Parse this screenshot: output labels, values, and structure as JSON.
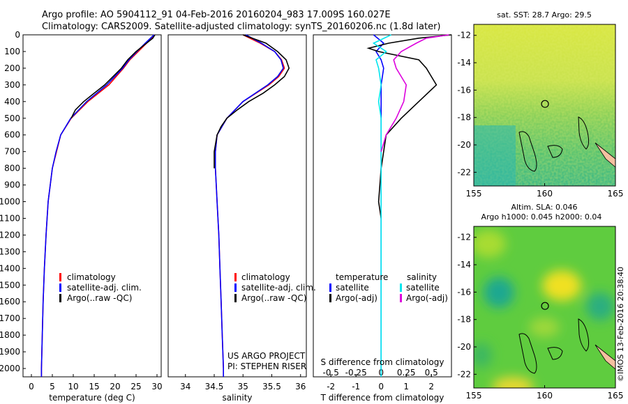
{
  "header": {
    "line1": "Argo profile: AO 5904112_91 04-Feb-2016 20160204_983 17.009S 160.027E",
    "line2": "Climatology: CARS2009. Satellite-adjusted climatology: synTS_20160206.nc (1.8d later)"
  },
  "colors": {
    "climatology": "#ff0000",
    "satellite": "#0000ff",
    "argo": "#000000",
    "sal_satellite": "#00e5ee",
    "sal_argo": "#dd00dd"
  },
  "credit": "©IMOS 13-Feb-2016 20:38:40",
  "chart_data": [
    {
      "type": "line",
      "xlabel": "temperature (deg C)",
      "ylabel": "",
      "xlim": [
        -2,
        31
      ],
      "ylim": [
        2050,
        0
      ],
      "xticks": [
        0,
        5,
        10,
        15,
        20,
        25,
        30
      ],
      "yticks": [
        0,
        100,
        200,
        300,
        400,
        500,
        600,
        700,
        800,
        900,
        1000,
        1100,
        1200,
        1300,
        1400,
        1500,
        1600,
        1700,
        1800,
        1900,
        2000
      ],
      "legend": [
        "climatology",
        "satellite-adj. clim.",
        "Argo(..raw -QC)"
      ],
      "series": [
        {
          "name": "climatology",
          "color": "#ff0000",
          "depth": [
            0,
            50,
            100,
            150,
            200,
            300,
            400,
            500,
            600,
            700,
            800,
            900,
            1000,
            1200,
            1400,
            1600,
            1800,
            2000,
            2050
          ],
          "values": [
            29.5,
            27.5,
            25.5,
            23.5,
            22.0,
            18.5,
            13.5,
            9.5,
            7.0,
            6.0,
            5.0,
            4.5,
            4.0,
            3.5,
            3.1,
            2.8,
            2.6,
            2.4,
            2.4
          ]
        },
        {
          "name": "satellite-adj. clim.",
          "color": "#0000ff",
          "depth": [
            0,
            50,
            100,
            150,
            200,
            300,
            400,
            500,
            600,
            700,
            800,
            900,
            1000,
            1200,
            1400,
            1600,
            1800,
            2000,
            2050
          ],
          "values": [
            29.3,
            27.2,
            25.2,
            23.3,
            21.8,
            18.0,
            13.2,
            9.4,
            7.0,
            5.9,
            5.0,
            4.5,
            4.0,
            3.5,
            3.1,
            2.8,
            2.6,
            2.4,
            2.4
          ]
        },
        {
          "name": "Argo(..raw -QC)",
          "color": "#000000",
          "depth": [
            0,
            20,
            50,
            100,
            150,
            200,
            250,
            300,
            350,
            400,
            450,
            500
          ],
          "values": [
            29.5,
            29.0,
            27.5,
            25.0,
            23.0,
            21.5,
            19.5,
            17.5,
            15.0,
            12.5,
            10.5,
            9.5
          ]
        }
      ]
    },
    {
      "type": "line",
      "xlabel": "salinity",
      "ylabel": "",
      "xlim": [
        33.7,
        36.1
      ],
      "ylim": [
        2050,
        0
      ],
      "xticks": [
        34,
        34.5,
        35,
        35.5,
        36
      ],
      "legend": [
        "climatology",
        "satellite-adj. clim.",
        "Argo(..raw -QC)"
      ],
      "annotations": [
        "US ARGO PROJECT",
        "PI: STEPHEN RISER"
      ],
      "series": [
        {
          "name": "climatology",
          "color": "#ff0000",
          "depth": [
            0,
            50,
            100,
            150,
            200,
            250,
            300,
            400,
            500,
            600,
            700,
            800,
            1000,
            1200,
            1400,
            1600,
            1800,
            2000,
            2050
          ],
          "values": [
            35.0,
            35.3,
            35.55,
            35.67,
            35.72,
            35.62,
            35.45,
            35.0,
            34.72,
            34.55,
            34.52,
            34.52,
            34.55,
            34.58,
            34.6,
            34.62,
            34.64,
            34.66,
            34.66
          ]
        },
        {
          "name": "satellite-adj. clim.",
          "color": "#0000ff",
          "depth": [
            0,
            50,
            100,
            150,
            200,
            250,
            300,
            400,
            500,
            600,
            700,
            800,
            1000,
            1200,
            1400,
            1600,
            1800,
            2000,
            2050
          ],
          "values": [
            35.05,
            35.32,
            35.55,
            35.66,
            35.7,
            35.6,
            35.43,
            35.0,
            34.72,
            34.55,
            34.52,
            34.52,
            34.55,
            34.58,
            34.6,
            34.62,
            34.64,
            34.66,
            34.66
          ]
        },
        {
          "name": "Argo(..raw -QC)",
          "color": "#000000",
          "depth": [
            0,
            50,
            100,
            150,
            200,
            250,
            300,
            350,
            400,
            450,
            500,
            550,
            600,
            700,
            800
          ],
          "values": [
            35.0,
            35.4,
            35.6,
            35.75,
            35.8,
            35.72,
            35.55,
            35.35,
            35.1,
            34.9,
            34.72,
            34.62,
            34.55,
            34.5,
            34.5
          ]
        }
      ]
    },
    {
      "type": "line",
      "xlabel": "T difference from climatology",
      "x2label": "S difference from climatology",
      "xlim": [
        -2.7,
        2.8
      ],
      "ylim": [
        2050,
        0
      ],
      "xticks": [
        -2,
        -1,
        0,
        1,
        2
      ],
      "x2ticks": [
        "-0.5",
        "-0.25",
        "0",
        "0.25",
        "0.5"
      ],
      "legend_temperature": {
        "title": "temperature",
        "items": [
          "satellite",
          "Argo(-adj)"
        ]
      },
      "legend_salinity": {
        "title": "salinity",
        "items": [
          "satellite",
          "Argo(-adj)"
        ]
      },
      "series": [
        {
          "name": "T satellite",
          "color": "#0000ff",
          "depth": [
            0,
            50,
            100,
            150,
            200,
            300,
            400,
            500,
            700,
            1000,
            1500,
            2050
          ],
          "values": [
            -0.3,
            0.1,
            -0.2,
            0.0,
            0.1,
            0.0,
            0.0,
            0.0,
            0.0,
            0.0,
            0.0,
            0.0
          ]
        },
        {
          "name": "T Argo(-adj)",
          "color": "#000000",
          "depth": [
            0,
            20,
            50,
            80,
            100,
            150,
            200,
            250,
            300,
            400,
            500,
            600,
            800,
            1000,
            1100
          ],
          "values": [
            2.8,
            1.5,
            0.3,
            -0.5,
            -0.1,
            1.5,
            1.8,
            2.0,
            2.2,
            1.5,
            0.8,
            0.2,
            0.0,
            -0.1,
            0.0
          ]
        },
        {
          "name": "S satellite",
          "color": "#00e5ee",
          "depth": [
            0,
            50,
            100,
            150,
            200,
            300,
            400,
            500,
            700,
            1000,
            1500,
            2050
          ],
          "values": [
            0.4,
            -0.3,
            0.2,
            -0.2,
            -0.1,
            0.0,
            -0.1,
            0.0,
            0.0,
            0.0,
            0.0,
            0.0
          ]
        },
        {
          "name": "S Argo(-adj)",
          "color": "#dd00dd",
          "depth": [
            0,
            20,
            50,
            100,
            150,
            200,
            250,
            300,
            400,
            500,
            600,
            700
          ],
          "values": [
            2.7,
            1.8,
            1.4,
            0.8,
            0.5,
            0.6,
            0.8,
            1.0,
            0.9,
            0.6,
            0.2,
            0.0
          ]
        }
      ]
    },
    {
      "type": "heatmap",
      "title": "sat. SST: 28.7 Argo: 29.5",
      "xticks": [
        155,
        160,
        165
      ],
      "yticks": [
        -12,
        -14,
        -16,
        -18,
        -20,
        -22
      ],
      "xlim": [
        155,
        165
      ],
      "ylim": [
        -23,
        -11.2
      ],
      "marker": {
        "lon": 160.027,
        "lat": -17.009
      }
    },
    {
      "type": "heatmap",
      "title": "Altim. SLA: 0.046",
      "subtitle": "Argo h1000: 0.045 h2000: 0.04",
      "xticks": [
        155,
        160,
        165
      ],
      "yticks": [
        -12,
        -14,
        -16,
        -18,
        -20,
        -22
      ],
      "xlim": [
        155,
        165
      ],
      "ylim": [
        -23,
        -11.2
      ],
      "marker": {
        "lon": 160.027,
        "lat": -17.009
      }
    }
  ]
}
